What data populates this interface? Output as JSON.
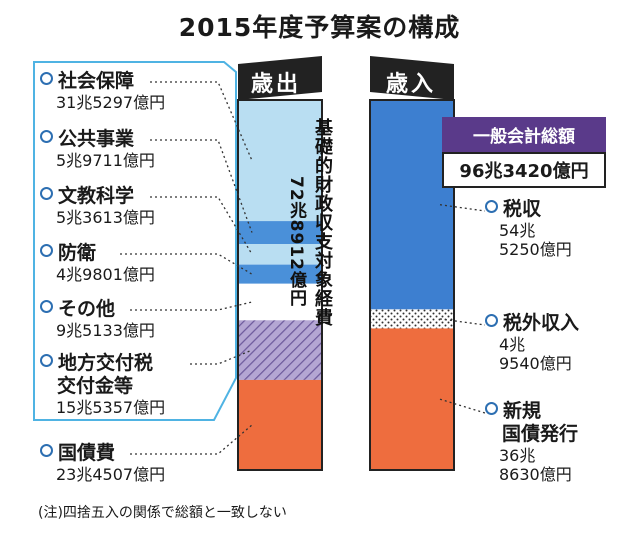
{
  "title": "2015年度予算案の構成",
  "note": "(注)四捨五入の関係で総額と一致しない",
  "headers": {
    "expenditure": "歳出",
    "revenue": "歳入"
  },
  "center_label": {
    "line1": "基礎的財政収支対象経費",
    "line2": "72兆8912億円"
  },
  "total": {
    "label": "一般会計総額",
    "value": "96兆3420億円"
  },
  "chart_data": [
    {
      "type": "bar",
      "stacked": true,
      "title": "歳出",
      "unit": "億円",
      "categories": [
        "社会保障",
        "公共事業",
        "文教科学",
        "防衛",
        "その他",
        "地方交付税交付金等",
        "国債費"
      ],
      "values": [
        315297,
        59711,
        53613,
        49801,
        95133,
        155357,
        234507
      ],
      "value_labels": [
        "31兆5297億円",
        "5兆9711億円",
        "5兆3613億円",
        "4兆9801億円",
        "9兆5133億円",
        "15兆5357億円",
        "23兆4507億円"
      ],
      "colors": [
        "#b9def2",
        "#4a90d9",
        "#b9def2",
        "#4a90d9",
        "#ffffff",
        "#a898c8",
        "#ee6d3e"
      ]
    },
    {
      "type": "bar",
      "stacked": true,
      "title": "歳入",
      "unit": "億円",
      "categories": [
        "税収",
        "税外収入",
        "新規国債発行"
      ],
      "values": [
        545250,
        49540,
        368630
      ],
      "value_labels": [
        "54兆5250億円",
        "4兆9540億円",
        "36兆8630億円"
      ],
      "colors": [
        "#3d7fd0",
        "#ffffff",
        "#ee6d3e"
      ]
    }
  ],
  "labels": {
    "exp": [
      {
        "name": "社会保障",
        "val": "31兆5297億円"
      },
      {
        "name": "公共事業",
        "val": "5兆9711億円"
      },
      {
        "name": "文教科学",
        "val": "5兆3613億円"
      },
      {
        "name": "防衛",
        "val": "4兆9801億円"
      },
      {
        "name": "その他",
        "val": "9兆5133億円"
      },
      {
        "name": "地方交付税",
        "name2": "交付金等",
        "val": "15兆5357億円"
      },
      {
        "name": "国債費",
        "val": "23兆4507億円"
      }
    ],
    "rev": [
      {
        "name": "税収",
        "val1": "54兆",
        "val2": "5250億円"
      },
      {
        "name": "税外収入",
        "val1": "4兆",
        "val2": "9540億円"
      },
      {
        "name": "新規",
        "name2": "国債発行",
        "val1": "36兆",
        "val2": "8630億円"
      }
    ]
  }
}
